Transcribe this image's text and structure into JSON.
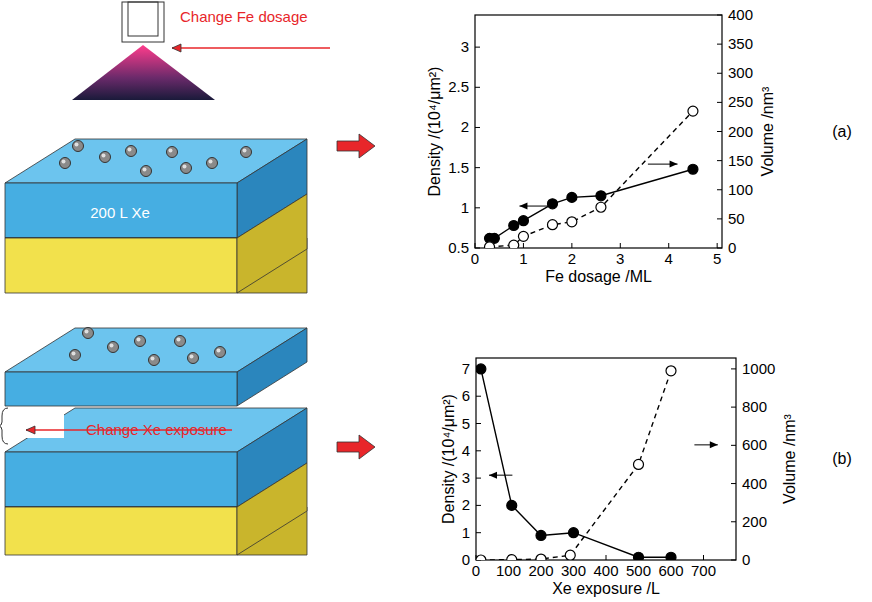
{
  "chart_data": [
    {
      "type": "line",
      "title": "(a)",
      "x_label": "Fe dosage /ML",
      "y_label": "Density /(10⁴/μm²)",
      "y2_label": "Volume /nm³",
      "xlim": [
        0,
        5.1
      ],
      "xticks": [
        0,
        1,
        2,
        3,
        4,
        5
      ],
      "ylim": [
        0.5,
        3.4
      ],
      "yticks": [
        0.5,
        1,
        1.5,
        2,
        2.5,
        3
      ],
      "y2lim": [
        0,
        400
      ],
      "y2ticks": [
        0,
        50,
        100,
        150,
        200,
        250,
        300,
        350,
        400
      ],
      "series": [
        {
          "x": [
            0.3,
            0.4,
            0.8,
            1,
            1.6,
            2,
            2.6,
            4.5
          ],
          "values": [
            0.62,
            0.62,
            0.78,
            0.84,
            1.05,
            1.13,
            1.15,
            1.48
          ],
          "color": "#000000",
          "marker": "filled",
          "line_style": "solid"
        },
        {
          "x": [
            0.3,
            0.8,
            1,
            1.6,
            2,
            2.6,
            4.5
          ],
          "values": [
            2,
            5,
            20,
            40,
            45,
            70,
            235
          ],
          "color": "#000000",
          "marker": "open",
          "line_style": "dashed",
          "axis": "y2"
        }
      ]
    },
    {
      "type": "line",
      "title": "(b)",
      "x_label": "Xe exposure /L",
      "y_label": "Density /(10⁴/μm²)",
      "y2_label": "Volume /nm³",
      "xlim": [
        0,
        800
      ],
      "xticks": [
        0,
        100,
        200,
        300,
        400,
        500,
        600,
        700
      ],
      "ylim": [
        0,
        7.4
      ],
      "yticks": [
        0,
        1,
        2,
        3,
        4,
        5,
        6,
        7
      ],
      "y2lim": [
        0,
        1057
      ],
      "y2ticks": [
        0,
        200,
        400,
        600,
        800,
        1000
      ],
      "series": [
        {
          "x": [
            15,
            110,
            200,
            300,
            500,
            600
          ],
          "values": [
            7,
            2,
            0.9,
            1,
            0.1,
            0.1
          ],
          "color": "#000000",
          "marker": "filled",
          "line_style": "solid"
        },
        {
          "x": [
            15,
            110,
            200,
            290,
            500,
            600
          ],
          "values": [
            0,
            2,
            5,
            25,
            500,
            990
          ],
          "color": "#000000",
          "marker": "open",
          "line_style": "dashed",
          "axis": "y2"
        }
      ]
    }
  ],
  "diagram": {
    "panels": [
      {
        "caption": "Change Fe dosage",
        "layer": "200 L Xe"
      },
      {
        "caption": "Change Xe exposure"
      }
    ]
  }
}
